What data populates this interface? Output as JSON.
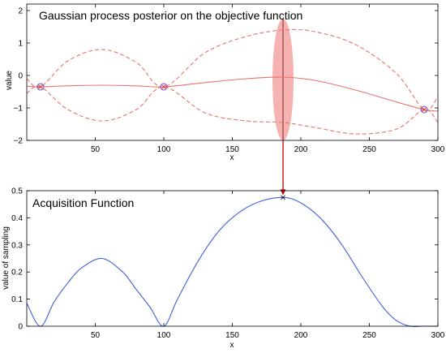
{
  "chart_data": [
    {
      "type": "line",
      "title": "Gaussian process posterior on the objective function",
      "xlabel": "x",
      "ylabel": "value",
      "xlim": [
        0,
        300
      ],
      "ylim": [
        -2,
        2.2
      ],
      "xticks": [
        "50",
        "100",
        "150",
        "200",
        "250",
        "300"
      ],
      "yticks": [
        "2",
        "1",
        "0",
        "−1",
        "−2"
      ],
      "mean_color": "#e8736b",
      "band_color": "#f4a3a3",
      "observations": [
        {
          "x": 10,
          "y": -0.35
        },
        {
          "x": 100,
          "y": -0.35
        },
        {
          "x": 290,
          "y": -1.05
        }
      ],
      "series": [
        {
          "role": "mean",
          "x": [
            0,
            10,
            30,
            55,
            80,
            100,
            130,
            160,
            187,
            210,
            240,
            270,
            290,
            300
          ],
          "y": [
            -0.33,
            -0.35,
            -0.32,
            -0.3,
            -0.32,
            -0.35,
            -0.22,
            -0.1,
            -0.05,
            -0.15,
            -0.45,
            -0.82,
            -1.05,
            -1.1
          ]
        },
        {
          "role": "upper",
          "x": [
            0,
            10,
            30,
            55,
            80,
            100,
            130,
            160,
            187,
            210,
            240,
            270,
            290,
            300
          ],
          "y": [
            -0.1,
            -0.35,
            0.45,
            0.8,
            0.4,
            -0.35,
            0.7,
            1.2,
            1.4,
            1.35,
            0.95,
            0.05,
            -1.05,
            -0.65
          ]
        },
        {
          "role": "lower",
          "x": [
            0,
            10,
            30,
            55,
            80,
            100,
            130,
            160,
            187,
            210,
            240,
            270,
            290,
            300
          ],
          "y": [
            -0.55,
            -0.35,
            -1.05,
            -1.4,
            -1.05,
            -0.35,
            -1.15,
            -1.4,
            -1.45,
            -1.6,
            -1.8,
            -1.65,
            -1.05,
            -1.45
          ]
        }
      ],
      "highlight": {
        "x": 187,
        "y_low": -2.0,
        "y_high": 1.75
      }
    },
    {
      "type": "line",
      "title": "Acquisition Function",
      "xlabel": "x",
      "ylabel": "value of sampling",
      "xlim": [
        0,
        300
      ],
      "ylim": [
        0,
        0.5
      ],
      "xticks": [
        "50",
        "100",
        "150",
        "200",
        "250",
        "300"
      ],
      "yticks": [
        "0",
        "0.1",
        "0.2",
        "0.3",
        "0.4",
        "0.5"
      ],
      "line_color": "#3d62d6",
      "max_point": {
        "x": 187,
        "y": 0.475
      },
      "series": [
        {
          "role": "acquisition",
          "x": [
            0,
            10,
            20,
            30,
            40,
            55,
            70,
            80,
            90,
            100,
            110,
            125,
            140,
            155,
            170,
            187,
            200,
            215,
            230,
            245,
            260,
            270,
            280,
            290,
            300
          ],
          "y": [
            0.085,
            0.0,
            0.09,
            0.16,
            0.215,
            0.25,
            0.2,
            0.135,
            0.07,
            0.0,
            0.1,
            0.24,
            0.35,
            0.42,
            0.46,
            0.475,
            0.455,
            0.395,
            0.3,
            0.18,
            0.07,
            0.02,
            0.0,
            0.0,
            0.0
          ]
        }
      ]
    }
  ]
}
